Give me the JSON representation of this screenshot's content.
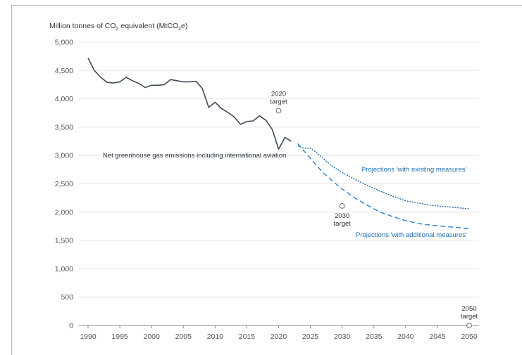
{
  "chart_data": {
    "type": "line",
    "ylabel": {
      "main": "Million tonnes of CO",
      "sub": "2",
      "mid": " equivalent (MtCO",
      "sub2": "2",
      "end": "e)"
    },
    "ylim": [
      0,
      5000
    ],
    "xlim": [
      1990,
      2050
    ],
    "y_ticks": [
      "0",
      "500",
      "1,000",
      "1,500",
      "2,000",
      "2,500",
      "3,000",
      "3,500",
      "4,000",
      "4,500",
      "5,000"
    ],
    "y_tick_values": [
      0,
      500,
      1000,
      1500,
      2000,
      2500,
      3000,
      3500,
      4000,
      4500,
      5000
    ],
    "x_ticks": [
      "1990",
      "1995",
      "2000",
      "2005",
      "2010",
      "2015",
      "2020",
      "2025",
      "2030",
      "2035",
      "2040",
      "2045",
      "2050"
    ],
    "x_tick_values": [
      1990,
      1995,
      2000,
      2005,
      2010,
      2015,
      2020,
      2025,
      2030,
      2035,
      2040,
      2045,
      2050
    ],
    "grid": "horizontal",
    "series": [
      {
        "name": "Net greenhouse gas emissions including international aviation",
        "style": "solid",
        "color": "#3d4856",
        "x": [
          1990,
          1991,
          1992,
          1993,
          1994,
          1995,
          1996,
          1997,
          1998,
          1999,
          2000,
          2001,
          2002,
          2003,
          2004,
          2005,
          2006,
          2007,
          2008,
          2009,
          2010,
          2011,
          2012,
          2013,
          2014,
          2015,
          2016,
          2017,
          2018,
          2019,
          2020,
          2021,
          2022
        ],
        "y": [
          4720,
          4500,
          4380,
          4290,
          4280,
          4300,
          4380,
          4320,
          4270,
          4200,
          4240,
          4240,
          4250,
          4340,
          4320,
          4300,
          4300,
          4310,
          4180,
          3850,
          3940,
          3830,
          3760,
          3680,
          3550,
          3600,
          3610,
          3700,
          3620,
          3460,
          3110,
          3320,
          3250
        ]
      },
      {
        "name": "Projections 'with existing measures'",
        "style": "dotted",
        "color": "#1f6fb5",
        "x": [
          2023,
          2024,
          2025,
          2026,
          2027,
          2028,
          2029,
          2030,
          2032,
          2034,
          2036,
          2038,
          2040,
          2042,
          2044,
          2046,
          2048,
          2050
        ],
        "y": [
          3170,
          3130,
          3130,
          3050,
          2950,
          2850,
          2770,
          2700,
          2580,
          2470,
          2370,
          2280,
          2200,
          2160,
          2120,
          2100,
          2080,
          2060
        ]
      },
      {
        "name": "Projections 'with additional measures'",
        "style": "dashed",
        "color": "#2f80c8",
        "x": [
          2023,
          2024,
          2025,
          2026,
          2027,
          2028,
          2029,
          2030,
          2032,
          2034,
          2036,
          2038,
          2040,
          2042,
          2044,
          2046,
          2048,
          2050
        ],
        "y": [
          3210,
          3080,
          2950,
          2820,
          2700,
          2600,
          2500,
          2410,
          2250,
          2120,
          2000,
          1920,
          1850,
          1800,
          1770,
          1750,
          1730,
          1710
        ]
      }
    ],
    "targets": [
      {
        "label_lines": [
          "2020",
          "target"
        ],
        "x": 2020,
        "y": 3790
      },
      {
        "label_lines": [
          "2030",
          "target"
        ],
        "x": 2030,
        "y": 2110
      },
      {
        "label_lines": [
          "2050",
          "target"
        ],
        "x": 2050,
        "y": 0
      }
    ]
  },
  "colors": {
    "grid": "#e6e6e6",
    "axis": "#8a8a8a",
    "history": "#3d4856",
    "projection": "#1f6fb5"
  }
}
